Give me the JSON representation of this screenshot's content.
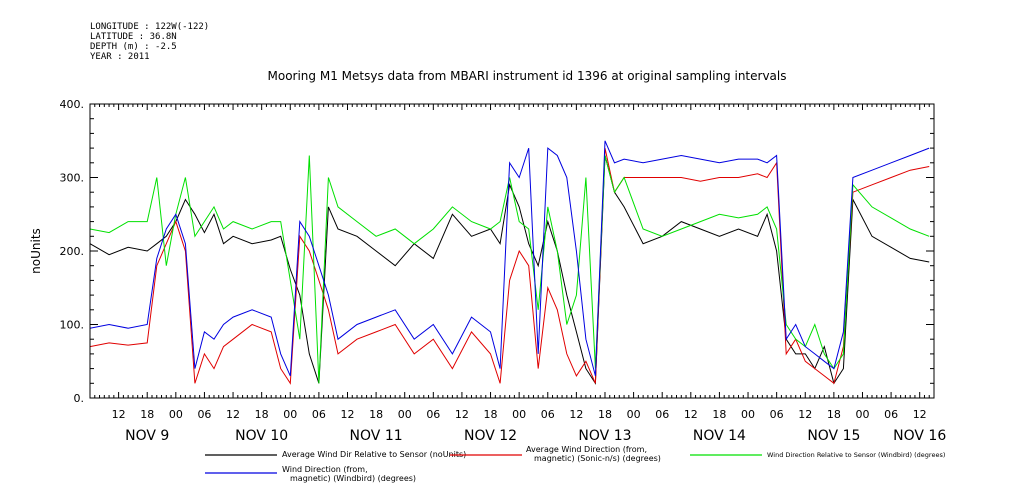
{
  "metadata": {
    "longitude": "LONGITUDE : 122W(-122)",
    "latitude": "LATITUDE : 36.8N",
    "depth": "DEPTH (m) : -2.5",
    "year": "YEAR : 2011"
  },
  "chart_data": {
    "type": "line",
    "title": "Mooring M1 Metsys data from MBARI instrument id 1396 at original sampling intervals",
    "ylabel": "noUnits",
    "xlabel": "",
    "ylim": [
      0,
      400
    ],
    "xlim": [
      0,
      177
    ],
    "x_unit": "hours since 2011-11-08 06:00",
    "yticks": [
      "0.",
      "100.",
      "200.",
      "300.",
      "400."
    ],
    "hour_ticks": [
      {
        "x": 6,
        "label": "12"
      },
      {
        "x": 12,
        "label": "18"
      },
      {
        "x": 18,
        "label": "00"
      },
      {
        "x": 24,
        "label": "06"
      },
      {
        "x": 30,
        "label": "12"
      },
      {
        "x": 36,
        "label": "18"
      },
      {
        "x": 42,
        "label": "00"
      },
      {
        "x": 48,
        "label": "06"
      },
      {
        "x": 54,
        "label": "12"
      },
      {
        "x": 60,
        "label": "18"
      },
      {
        "x": 66,
        "label": "00"
      },
      {
        "x": 72,
        "label": "06"
      },
      {
        "x": 78,
        "label": "12"
      },
      {
        "x": 84,
        "label": "18"
      },
      {
        "x": 90,
        "label": "00"
      },
      {
        "x": 96,
        "label": "06"
      },
      {
        "x": 102,
        "label": "12"
      },
      {
        "x": 108,
        "label": "18"
      },
      {
        "x": 114,
        "label": "00"
      },
      {
        "x": 120,
        "label": "06"
      },
      {
        "x": 126,
        "label": "12"
      },
      {
        "x": 132,
        "label": "18"
      },
      {
        "x": 138,
        "label": "00"
      },
      {
        "x": 144,
        "label": "06"
      },
      {
        "x": 150,
        "label": "12"
      },
      {
        "x": 156,
        "label": "18"
      },
      {
        "x": 162,
        "label": "00"
      },
      {
        "x": 168,
        "label": "06"
      },
      {
        "x": 174,
        "label": "12"
      }
    ],
    "day_labels": [
      {
        "x": 12,
        "label": "NOV 9"
      },
      {
        "x": 36,
        "label": "NOV 10"
      },
      {
        "x": 60,
        "label": "NOV 11"
      },
      {
        "x": 84,
        "label": "NOV 12"
      },
      {
        "x": 108,
        "label": "NOV 13"
      },
      {
        "x": 132,
        "label": "NOV 14"
      },
      {
        "x": 156,
        "label": "NOV 15"
      },
      {
        "x": 174,
        "label": "NOV 16"
      }
    ],
    "series": [
      {
        "name": "Average Wind Dir Relative to Sensor (noUnits)",
        "color": "#000000",
        "x": [
          0,
          4,
          8,
          12,
          14,
          16,
          18,
          20,
          22,
          24,
          26,
          28,
          30,
          34,
          38,
          40,
          42,
          44,
          46,
          48,
          50,
          52,
          56,
          60,
          64,
          68,
          72,
          76,
          80,
          84,
          86,
          88,
          90,
          92,
          94,
          96,
          98,
          100,
          102,
          104,
          106,
          108,
          110,
          112,
          116,
          120,
          124,
          128,
          132,
          136,
          140,
          142,
          144,
          146,
          148,
          150,
          152,
          154,
          156,
          158,
          160,
          164,
          168,
          172,
          176
        ],
        "y": [
          210,
          195,
          205,
          200,
          210,
          220,
          240,
          270,
          250,
          225,
          250,
          210,
          220,
          210,
          215,
          220,
          175,
          140,
          60,
          20,
          260,
          230,
          220,
          200,
          180,
          210,
          190,
          250,
          220,
          230,
          210,
          290,
          260,
          210,
          180,
          240,
          200,
          140,
          90,
          40,
          20,
          330,
          280,
          260,
          210,
          220,
          240,
          230,
          220,
          230,
          220,
          250,
          200,
          80,
          60,
          60,
          40,
          70,
          20,
          40,
          270,
          220,
          205,
          190,
          185
        ]
      },
      {
        "name": "Average Wind Direction (from, magnetic) (Sonic-n/s) (degrees)",
        "color": "#e00000",
        "x": [
          0,
          4,
          8,
          12,
          14,
          16,
          18,
          20,
          22,
          24,
          26,
          28,
          30,
          34,
          38,
          40,
          42,
          44,
          46,
          48,
          50,
          52,
          56,
          60,
          64,
          68,
          72,
          76,
          80,
          84,
          86,
          88,
          90,
          92,
          94,
          96,
          98,
          100,
          102,
          104,
          106,
          108,
          110,
          112,
          116,
          120,
          124,
          128,
          132,
          136,
          140,
          142,
          144,
          146,
          148,
          150,
          152,
          154,
          156,
          158,
          160,
          164,
          168,
          172,
          176
        ],
        "y": [
          70,
          75,
          72,
          75,
          180,
          210,
          240,
          200,
          20,
          60,
          40,
          70,
          80,
          100,
          90,
          40,
          20,
          220,
          200,
          160,
          120,
          60,
          80,
          90,
          100,
          60,
          80,
          40,
          90,
          60,
          20,
          160,
          200,
          180,
          40,
          150,
          120,
          60,
          30,
          50,
          20,
          340,
          280,
          300,
          300,
          300,
          300,
          295,
          300,
          300,
          305,
          300,
          320,
          60,
          80,
          50,
          40,
          30,
          20,
          70,
          280,
          290,
          300,
          310,
          315
        ]
      },
      {
        "name": "Wind Direction Relative to Sensor (Windbird) (degrees)",
        "color": "#00e000",
        "x": [
          0,
          4,
          8,
          12,
          14,
          16,
          18,
          20,
          22,
          24,
          26,
          28,
          30,
          34,
          38,
          40,
          42,
          44,
          46,
          48,
          50,
          52,
          56,
          60,
          64,
          68,
          72,
          76,
          80,
          84,
          86,
          88,
          90,
          92,
          94,
          96,
          98,
          100,
          102,
          104,
          106,
          108,
          110,
          112,
          116,
          120,
          124,
          128,
          132,
          136,
          140,
          142,
          144,
          146,
          148,
          150,
          152,
          154,
          156,
          158,
          160,
          164,
          168,
          172,
          176
        ],
        "y": [
          230,
          225,
          240,
          240,
          300,
          180,
          250,
          300,
          220,
          240,
          260,
          230,
          240,
          230,
          240,
          240,
          160,
          80,
          330,
          20,
          300,
          260,
          240,
          220,
          230,
          210,
          230,
          260,
          240,
          230,
          240,
          300,
          240,
          230,
          120,
          260,
          200,
          100,
          140,
          300,
          40,
          330,
          280,
          300,
          230,
          220,
          230,
          240,
          250,
          245,
          250,
          260,
          230,
          100,
          80,
          70,
          100,
          60,
          40,
          60,
          290,
          260,
          245,
          230,
          220
        ]
      },
      {
        "name": "Wind Direction (from, magnetic) (Windbird) (degrees)",
        "color": "#0000e0",
        "x": [
          0,
          4,
          8,
          12,
          14,
          16,
          18,
          20,
          22,
          24,
          26,
          28,
          30,
          34,
          38,
          40,
          42,
          44,
          46,
          48,
          50,
          52,
          56,
          60,
          64,
          68,
          72,
          76,
          80,
          84,
          86,
          88,
          90,
          92,
          94,
          96,
          98,
          100,
          102,
          104,
          106,
          108,
          110,
          112,
          116,
          120,
          124,
          128,
          132,
          136,
          140,
          142,
          144,
          146,
          148,
          150,
          152,
          154,
          156,
          158,
          160,
          164,
          168,
          172,
          176
        ],
        "y": [
          95,
          100,
          95,
          100,
          190,
          230,
          250,
          210,
          40,
          90,
          80,
          100,
          110,
          120,
          110,
          60,
          30,
          240,
          220,
          180,
          140,
          80,
          100,
          110,
          120,
          80,
          100,
          60,
          110,
          90,
          40,
          320,
          300,
          340,
          60,
          340,
          330,
          300,
          200,
          80,
          30,
          350,
          320,
          325,
          320,
          325,
          330,
          325,
          320,
          325,
          325,
          320,
          330,
          80,
          100,
          70,
          60,
          50,
          40,
          90,
          300,
          310,
          320,
          330,
          340
        ]
      }
    ],
    "legend": [
      {
        "label": "Average Wind Dir Relative to Sensor (noUnits)",
        "color": "#000000"
      },
      {
        "label": "Average Wind Direction (from,\nmagnetic) (Sonic-n/s) (degrees)",
        "color": "#e00000"
      },
      {
        "label": "Wind Direction Relative to Sensor (Windbird) (degrees)",
        "color": "#00e000"
      },
      {
        "label": "Wind Direction (from,\nmagnetic) (Windbird) (degrees)",
        "color": "#0000e0"
      }
    ]
  }
}
